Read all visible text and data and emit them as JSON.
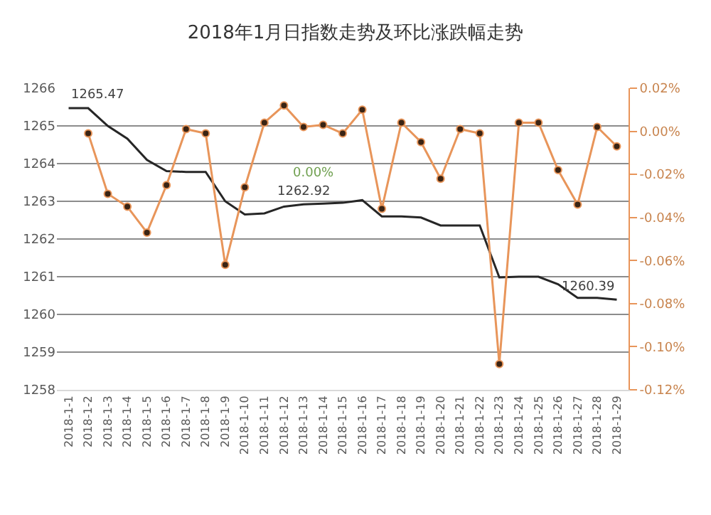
{
  "chart_data": {
    "type": "line",
    "title": "2018年1月日指数走势及环比涨跌幅走势",
    "categories": [
      "2018-1-1",
      "2018-1-2",
      "2018-1-3",
      "2018-1-4",
      "2018-1-5",
      "2018-1-6",
      "2018-1-7",
      "2018-1-8",
      "2018-1-9",
      "2018-1-10",
      "2018-1-11",
      "2018-1-12",
      "2018-1-13",
      "2018-1-14",
      "2018-1-15",
      "2018-1-16",
      "2018-1-17",
      "2018-1-18",
      "2018-1-19",
      "2018-1-20",
      "2018-1-21",
      "2018-1-22",
      "2018-1-23",
      "2018-1-24",
      "2018-1-25",
      "2018-1-26",
      "2018-1-27",
      "2018-1-28",
      "2018-1-29"
    ],
    "series": [
      {
        "color": "#262626",
        "marker": "none",
        "values": [
          1265.47,
          1265.47,
          1265.0,
          1264.66,
          1264.1,
          1263.8,
          1263.78,
          1263.78,
          1263.0,
          1262.65,
          1262.68,
          1262.86,
          1262.92,
          1262.94,
          1262.96,
          1263.03,
          1262.6,
          1262.6,
          1262.57,
          1262.36,
          1262.36,
          1262.36,
          1260.98,
          1261.0,
          1261.0,
          1260.8,
          1260.44,
          1260.44,
          1260.39
        ]
      },
      {
        "color": "#e8955a",
        "marker": "circle",
        "axis": "y2",
        "values": [
          null,
          -0.001,
          -0.029,
          -0.035,
          -0.047,
          -0.025,
          0.001,
          -0.001,
          -0.062,
          -0.026,
          0.004,
          0.012,
          0.002,
          0.003,
          -0.001,
          0.01,
          -0.036,
          0.004,
          -0.005,
          -0.022,
          0.001,
          -0.001,
          -0.108,
          0.004,
          0.004,
          -0.018,
          -0.034,
          0.002,
          -0.007
        ]
      }
    ],
    "ylim": [
      1258,
      1266
    ],
    "yticks": [
      1258,
      1259,
      1260,
      1261,
      1262,
      1263,
      1264,
      1265,
      1266
    ],
    "y2lim": [
      -0.12,
      0.02
    ],
    "y2ticks": [
      {
        "value": -0.12,
        "label": "-0.12%"
      },
      {
        "value": -0.1,
        "label": "-0.10%"
      },
      {
        "value": -0.08,
        "label": "-0.08%"
      },
      {
        "value": -0.06,
        "label": "-0.06%"
      },
      {
        "value": -0.04,
        "label": "-0.04%"
      },
      {
        "value": -0.02,
        "label": "-0.02%"
      },
      {
        "value": 0,
        "label": "0.00%"
      },
      {
        "value": 0.02,
        "label": "0.02%"
      }
    ],
    "annotations": [
      {
        "text": "1265.47",
        "x": "2018-1-1",
        "y": 1265.47
      },
      {
        "text": "1262.92",
        "x": "2018-1-13",
        "y": 1262.92
      },
      "0.00%",
      {
        "text": "1260.39",
        "x": "2018-1-29",
        "y": 1260.39
      }
    ],
    "grid": "y"
  }
}
